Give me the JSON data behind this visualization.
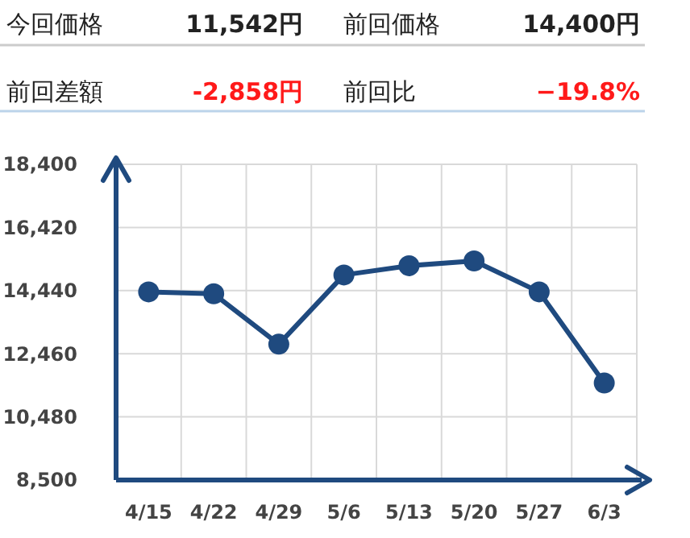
{
  "chart_data": {
    "type": "line",
    "annotations": [
      "今回価格",
      "11,542円",
      "前回価格",
      "14,400円",
      "前回差額",
      "-2,858円",
      "前回比",
      "−19.8%"
    ],
    "categories": [
      "4/15",
      "4/22",
      "4/29",
      "5/6",
      "5/13",
      "5/20",
      "5/27",
      "6/3"
    ],
    "series": [
      {
        "color": "#1f4a7f",
        "values": [
          14400,
          14340,
          12760,
          14930,
          15220,
          15370,
          14400,
          11542
        ]
      }
    ],
    "ylim": [
      8500,
      18400
    ],
    "yticks": [
      {
        "value": 8500,
        "label": "8,500"
      },
      {
        "value": 10480,
        "label": "10,480"
      },
      {
        "value": 12460,
        "label": "12,460"
      },
      {
        "value": 14440,
        "label": "14,440"
      },
      {
        "value": 16420,
        "label": "16,420"
      },
      {
        "value": 18400,
        "label": "18,400"
      }
    ],
    "grid": true,
    "marker": "circle",
    "line_style": "solid"
  }
}
